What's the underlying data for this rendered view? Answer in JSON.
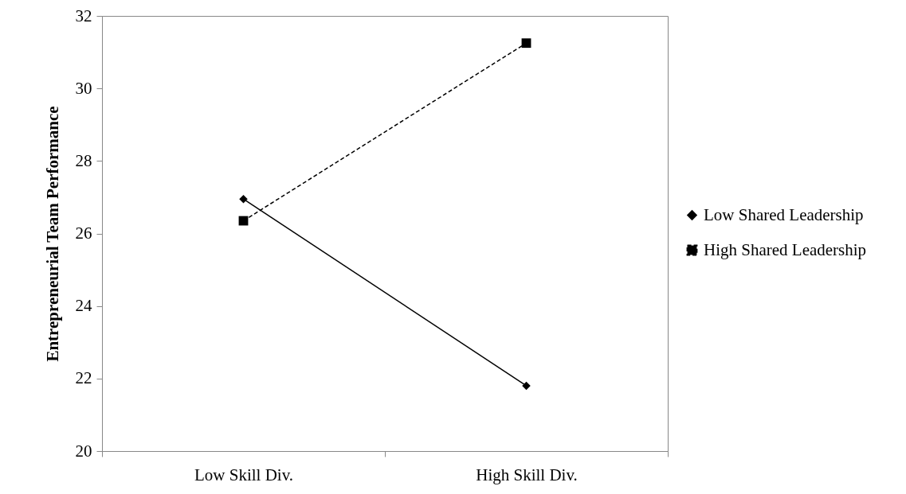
{
  "chart_data": {
    "type": "line",
    "ylabel": "Entrepreneurial Team Performance",
    "categories": [
      "Low Skill Div.",
      "High Skill Div."
    ],
    "series": [
      {
        "name": "Low Shared Leadership",
        "color": "#000000",
        "values": [
          26.95,
          21.8
        ],
        "marker": "diamond",
        "line_style": "solid"
      },
      {
        "name": "High Shared Leadership",
        "color": "#000000",
        "values": [
          26.35,
          31.25
        ],
        "marker": "square",
        "line_style": "dashed"
      }
    ],
    "ylim": [
      20,
      32
    ],
    "yticks": [
      20,
      22,
      24,
      26,
      28,
      30,
      32
    ],
    "grid": false,
    "legend": "right"
  }
}
